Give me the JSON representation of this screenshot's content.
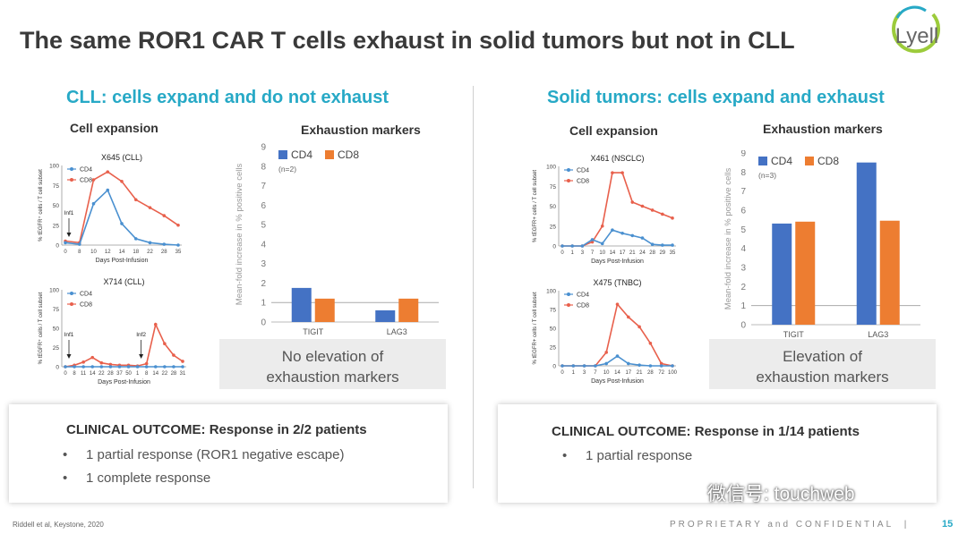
{
  "title": "The same ROR1 CAR T cells exhaust in solid tumors but not in CLL",
  "logo_text": "Lyell",
  "colors": {
    "cd4": "#4a90d0",
    "cd8": "#e8604c",
    "bar_cd4": "#4472c4",
    "bar_cd8": "#ed7d31",
    "accent": "#27a9c6"
  },
  "left": {
    "heading": "CLL: cells expand and do not exhaust",
    "expansion_title": "Cell expansion",
    "markers_title": "Exhaustion markers",
    "note": [
      "No elevation of",
      "exhaustion markers"
    ],
    "outcome_title": "CLINICAL OUTCOME: Response in 2/2 patients",
    "bullets": [
      "1 partial response (ROR1 negative escape)",
      "1 complete response"
    ]
  },
  "right": {
    "heading": "Solid tumors: cells expand and exhaust",
    "expansion_title": "Cell expansion",
    "markers_title": "Exhaustion markers",
    "note": [
      "Elevation of",
      "exhaustion markers"
    ],
    "outcome_title": "CLINICAL OUTCOME: Response in 1/14 patients",
    "bullets": [
      "1 partial response"
    ]
  },
  "footer": {
    "citation": "Riddell et al, Keystone, 2020",
    "confidential": "PROPRIETARY and CONFIDENTIAL",
    "separator": "|",
    "page": "15"
  },
  "watermark": "微信号: touchweb",
  "chart_data": [
    {
      "id": "x645",
      "type": "line",
      "title": "X645 (CLL)",
      "xlabel": "Days Post-Infusion",
      "ylabel": "% tEGFR⁺ cells / T cell subset",
      "yticks": [
        0,
        25,
        50,
        75,
        100
      ],
      "ylim": [
        0,
        100
      ],
      "x": [
        "0",
        "8",
        "10",
        "12",
        "14",
        "18",
        "22",
        "28",
        "35"
      ],
      "series": [
        {
          "name": "CD4",
          "values": [
            3,
            1,
            52,
            69,
            27,
            8,
            3,
            1,
            0
          ]
        },
        {
          "name": "CD8",
          "values": [
            5,
            3,
            82,
            92,
            80,
            57,
            47,
            37,
            25
          ]
        }
      ],
      "annotations": [
        {
          "text": "Inf1",
          "x_index": 0
        }
      ]
    },
    {
      "id": "x714",
      "type": "line",
      "title": "X714 (CLL)",
      "xlabel": "Days Post-Infusion",
      "ylabel": "% tEGFR⁺ cells / T cell subset",
      "yticks": [
        0,
        25,
        50,
        75,
        100
      ],
      "ylim": [
        0,
        100
      ],
      "x": [
        "0",
        "8",
        "11",
        "14",
        "22",
        "28",
        "37",
        "50",
        "1",
        "8",
        "14",
        "22",
        "28",
        "31"
      ],
      "series": [
        {
          "name": "CD4",
          "values": [
            0,
            0,
            0,
            0,
            0,
            0,
            0,
            0,
            0,
            0,
            0,
            0,
            0,
            0
          ]
        },
        {
          "name": "CD8",
          "values": [
            0,
            2,
            6,
            12,
            5,
            3,
            2,
            2,
            1,
            4,
            55,
            30,
            15,
            7
          ]
        }
      ],
      "annotations": [
        {
          "text": "Inf1",
          "x_index": 0
        },
        {
          "text": "Inf2",
          "x_index": 8
        }
      ]
    },
    {
      "id": "cll-markers",
      "type": "bar",
      "ylabel": "Mean-fold increase in % positive cells",
      "note": "(n=2)",
      "categories": [
        "TIGIT",
        "LAG3"
      ],
      "ylim": [
        0,
        9
      ],
      "yticks": [
        0,
        1,
        2,
        3,
        4,
        5,
        6,
        7,
        8,
        9
      ],
      "reference_line": 1,
      "series": [
        {
          "name": "CD4",
          "values": [
            1.75,
            0.6
          ]
        },
        {
          "name": "CD8",
          "values": [
            1.2,
            1.2
          ]
        }
      ]
    },
    {
      "id": "x461",
      "type": "line",
      "title": "X461 (NSCLC)",
      "xlabel": "Days Post-Infusion",
      "ylabel": "% tEGFR+ cells / T cell subset",
      "yticks": [
        0,
        25,
        50,
        75,
        100
      ],
      "ylim": [
        0,
        100
      ],
      "x": [
        "0",
        "1",
        "3",
        "7",
        "10",
        "14",
        "17",
        "21",
        "24",
        "28",
        "29",
        "35"
      ],
      "series": [
        {
          "name": "CD4",
          "values": [
            0,
            0,
            0,
            8,
            3,
            20,
            16,
            13,
            10,
            2,
            1,
            1
          ]
        },
        {
          "name": "CD8",
          "values": [
            0,
            0,
            0,
            5,
            25,
            92,
            92,
            55,
            50,
            45,
            40,
            35
          ]
        }
      ]
    },
    {
      "id": "x475",
      "type": "line",
      "title": "X475 (TNBC)",
      "xlabel": "Days Post-Infusion",
      "ylabel": "% tEGFR+ cells / T cell subset",
      "yticks": [
        0,
        25,
        50,
        75,
        100
      ],
      "ylim": [
        0,
        100
      ],
      "x": [
        "0",
        "1",
        "3",
        "7",
        "10",
        "14",
        "17",
        "21",
        "28",
        "72",
        "100"
      ],
      "series": [
        {
          "name": "CD4",
          "values": [
            0,
            0,
            0,
            0,
            3,
            13,
            3,
            1,
            0,
            0,
            0
          ]
        },
        {
          "name": "CD8",
          "values": [
            0,
            0,
            0,
            0,
            18,
            82,
            65,
            52,
            30,
            3,
            0
          ]
        }
      ]
    },
    {
      "id": "solid-markers",
      "type": "bar",
      "ylabel": "Mean-fold increase in % positive cells",
      "note": "(n=3)",
      "categories": [
        "TIGIT",
        "LAG3"
      ],
      "ylim": [
        0,
        9
      ],
      "yticks": [
        0,
        1,
        2,
        3,
        4,
        5,
        6,
        7,
        8,
        9
      ],
      "reference_line": 1,
      "series": [
        {
          "name": "CD4",
          "values": [
            5.3,
            8.5
          ]
        },
        {
          "name": "CD8",
          "values": [
            5.4,
            5.45
          ]
        }
      ]
    }
  ]
}
